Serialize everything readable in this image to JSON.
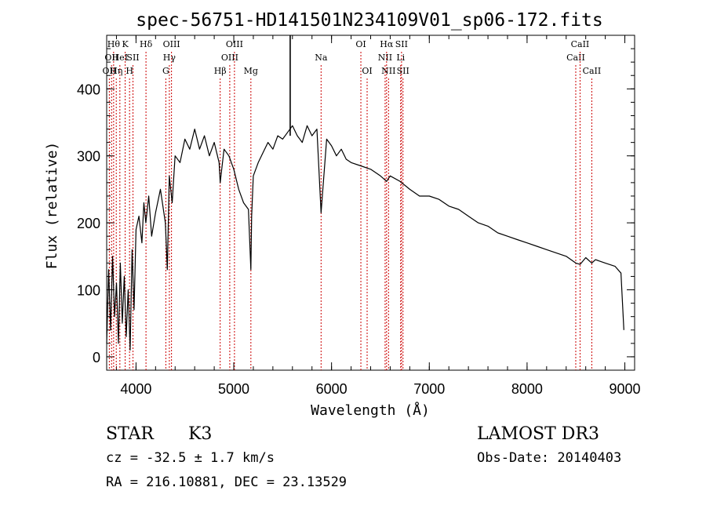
{
  "chart_data": {
    "type": "line",
    "title": "spec-56751-HD141501N234109V01_sp06-172.fits",
    "xlabel": "Wavelength (Å)",
    "ylabel": "Flux (relative)",
    "xlim": [
      3700,
      9100
    ],
    "ylim": [
      -20,
      480
    ],
    "xticks": [
      4000,
      5000,
      6000,
      7000,
      8000,
      9000
    ],
    "yticks": [
      0,
      100,
      200,
      300,
      400
    ],
    "x_minor_step": 200,
    "y_minor_step": 20,
    "line_color": "#000000",
    "marker_color": "#cc0000",
    "series": [
      {
        "name": "spectrum",
        "x": [
          3700,
          3720,
          3740,
          3760,
          3780,
          3800,
          3820,
          3840,
          3860,
          3880,
          3900,
          3920,
          3940,
          3960,
          3980,
          4000,
          4030,
          4060,
          4080,
          4100,
          4130,
          4160,
          4200,
          4250,
          4300,
          4320,
          4340,
          4370,
          4400,
          4450,
          4500,
          4550,
          4600,
          4650,
          4700,
          4750,
          4800,
          4850,
          4861,
          4900,
          4950,
          5000,
          5050,
          5100,
          5150,
          5175,
          5183,
          5200,
          5250,
          5300,
          5350,
          5400,
          5450,
          5500,
          5550,
          5600,
          5650,
          5700,
          5750,
          5800,
          5850,
          5893,
          5950,
          6000,
          6050,
          6100,
          6150,
          6200,
          6300,
          6400,
          6500,
          6563,
          6600,
          6700,
          6800,
          6900,
          7000,
          7100,
          7200,
          7300,
          7400,
          7500,
          7600,
          7700,
          7800,
          7900,
          8000,
          8100,
          8200,
          8300,
          8400,
          8498,
          8542,
          8600,
          8662,
          8700,
          8800,
          8900,
          8960,
          8990
        ],
        "y": [
          20,
          130,
          40,
          150,
          60,
          110,
          20,
          140,
          50,
          120,
          30,
          100,
          10,
          160,
          70,
          190,
          210,
          170,
          230,
          200,
          240,
          180,
          215,
          250,
          200,
          130,
          270,
          230,
          300,
          290,
          325,
          310,
          340,
          310,
          330,
          300,
          320,
          290,
          260,
          310,
          300,
          280,
          250,
          230,
          220,
          130,
          210,
          270,
          290,
          305,
          320,
          310,
          330,
          325,
          335,
          345,
          330,
          320,
          345,
          330,
          340,
          215,
          325,
          315,
          300,
          310,
          295,
          290,
          285,
          280,
          270,
          262,
          270,
          262,
          250,
          240,
          240,
          235,
          225,
          220,
          210,
          200,
          195,
          185,
          180,
          175,
          170,
          165,
          160,
          155,
          150,
          140,
          138,
          148,
          140,
          145,
          140,
          135,
          125,
          40
        ]
      }
    ],
    "spikes": [
      {
        "x": 5577,
        "y_top": 480
      }
    ],
    "lines": [
      {
        "x": 3727,
        "row": 2,
        "label": "OII"
      },
      {
        "x": 3750,
        "row": 1,
        "label": "OII"
      },
      {
        "x": 3771,
        "row": 0,
        "label": "Hθ"
      },
      {
        "x": 3798,
        "row": 2,
        "label": "Hη"
      },
      {
        "x": 3835,
        "row": 1,
        "label": "HeI"
      },
      {
        "x": 3889,
        "row": 0,
        "label": "K"
      },
      {
        "x": 3934,
        "row": 2,
        "label": "H"
      },
      {
        "x": 3969,
        "row": 1,
        "label": "SII"
      },
      {
        "x": 4102,
        "row": 0,
        "label": "Hδ"
      },
      {
        "x": 4305,
        "row": 2,
        "label": "G"
      },
      {
        "x": 4341,
        "row": 1,
        "label": "Hγ"
      },
      {
        "x": 4363,
        "row": 0,
        "label": "OIII"
      },
      {
        "x": 4861,
        "row": 2,
        "label": "Hβ"
      },
      {
        "x": 4959,
        "row": 1,
        "label": "OIII"
      },
      {
        "x": 5007,
        "row": 0,
        "label": "OIII"
      },
      {
        "x": 5175,
        "row": 2,
        "label": "Mg"
      },
      {
        "x": 5893,
        "row": 1,
        "label": "Na"
      },
      {
        "x": 6300,
        "row": 0,
        "label": "OI"
      },
      {
        "x": 6364,
        "row": 2,
        "label": "OI"
      },
      {
        "x": 6548,
        "row": 1,
        "label": "NII"
      },
      {
        "x": 6563,
        "row": 0,
        "label": "Hα"
      },
      {
        "x": 6583,
        "row": 2,
        "label": "NII"
      },
      {
        "x": 6707,
        "row": 1,
        "label": "Li"
      },
      {
        "x": 6716,
        "row": 0,
        "label": "SII"
      },
      {
        "x": 6731,
        "row": 2,
        "label": "SII"
      },
      {
        "x": 8498,
        "row": 1,
        "label": "CaII"
      },
      {
        "x": 8542,
        "row": 0,
        "label": "CaII"
      },
      {
        "x": 8662,
        "row": 2,
        "label": "CaII"
      }
    ]
  },
  "info": {
    "object_class": "STAR",
    "subclass": "K3",
    "cz": "cz = -32.5 ± 1.7 km/s",
    "radec": "RA = 216.10881, DEC =  23.13529",
    "survey": "LAMOST DR3",
    "obs_date": "Obs-Date: 20140403"
  }
}
